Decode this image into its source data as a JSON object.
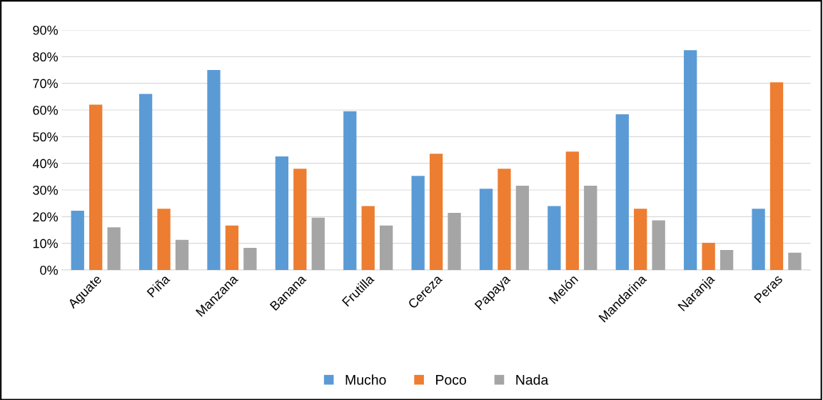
{
  "chart_data": {
    "type": "bar",
    "categories": [
      "Aguate",
      "Piña",
      "Manzana",
      "Banana",
      "Frutilla",
      "Cereza",
      "Papaya",
      "Melón",
      "Mandarina",
      "Naranja",
      "Peras"
    ],
    "series": [
      {
        "name": "Mucho",
        "color": "#5b9bd5",
        "values": [
          22.2,
          66,
          75,
          42.6,
          59.5,
          35.3,
          30.5,
          24,
          58.4,
          82.4,
          23
        ]
      },
      {
        "name": "Poco",
        "color": "#ed7d31",
        "values": [
          62,
          23,
          16.7,
          38,
          24,
          43.6,
          38,
          44.4,
          23,
          10.2,
          70.4
        ]
      },
      {
        "name": "Nada",
        "color": "#a5a5a5",
        "values": [
          16,
          11.3,
          8.3,
          19.6,
          16.7,
          21.4,
          31.6,
          31.6,
          18.6,
          7.5,
          6.5
        ]
      }
    ],
    "ylim": [
      0,
      90
    ],
    "yticks": [
      {
        "value": 0,
        "label": "0%"
      },
      {
        "value": 10,
        "label": "10%"
      },
      {
        "value": 20,
        "label": "20%"
      },
      {
        "value": 30,
        "label": "30%"
      },
      {
        "value": 40,
        "label": "40%"
      },
      {
        "value": 50,
        "label": "50%"
      },
      {
        "value": 60,
        "label": "60%"
      },
      {
        "value": 70,
        "label": "70%"
      },
      {
        "value": 80,
        "label": "80%"
      },
      {
        "value": 90,
        "label": "90%"
      }
    ],
    "grid": "y",
    "legend": "bottom"
  }
}
